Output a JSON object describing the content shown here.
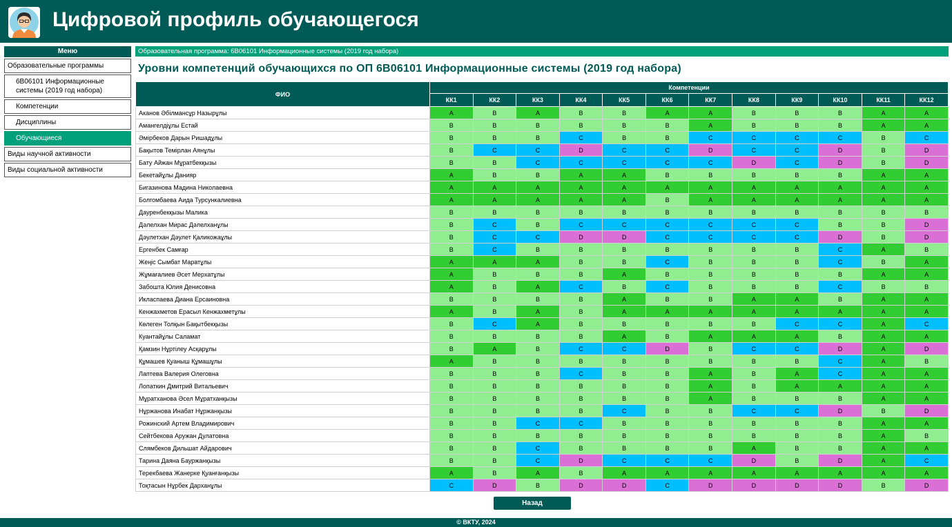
{
  "header": {
    "title": "Цифровой профиль обучающегося",
    "avatar_icon": "student-avatar-icon"
  },
  "sidebar": {
    "menu_label": "Меню",
    "items": [
      {
        "label": "Образовательные программы",
        "sub": false,
        "active": false
      },
      {
        "label": "6В06101 Информационные системы (2019 год набора)",
        "sub": true,
        "active": false
      },
      {
        "label": "Компетенции",
        "sub": true,
        "active": false
      },
      {
        "label": "Дисциплины",
        "sub": true,
        "active": false
      },
      {
        "label": "Обучающиеся",
        "sub": true,
        "active": true
      },
      {
        "label": "Виды научной активности",
        "sub": false,
        "active": false
      },
      {
        "label": "Виды социальной активности",
        "sub": false,
        "active": false
      }
    ]
  },
  "banner": "Образовательная программа: 6В06101 Информационные системы (2019 год набора)",
  "page_title": "Уровни компетенций обучающихся по ОП 6В06101 Информационные системы (2019 год набора)",
  "table": {
    "fio_header": "ФИО",
    "competencies_header": "Компетенции",
    "columns": [
      "КК1",
      "КК2",
      "КК3",
      "КК4",
      "КК5",
      "КК6",
      "КК7",
      "КК8",
      "КК9",
      "КК10",
      "КК11",
      "КК12"
    ],
    "level_colors": {
      "A": "#32cd32",
      "B": "#90ee90",
      "C": "#00bfff",
      "D": "#da70d6"
    },
    "rows": [
      {
        "name": "Аканов Әбілмансұр Назырұлы",
        "levels": [
          "A",
          "B",
          "A",
          "B",
          "B",
          "A",
          "A",
          "B",
          "B",
          "B",
          "A",
          "A"
        ]
      },
      {
        "name": "Амангелдіұлы Естай",
        "levels": [
          "B",
          "B",
          "B",
          "B",
          "B",
          "B",
          "A",
          "B",
          "B",
          "B",
          "A",
          "A"
        ]
      },
      {
        "name": "Әмірбеков Дарын Ришадұлы",
        "levels": [
          "B",
          "B",
          "B",
          "C",
          "B",
          "B",
          "C",
          "C",
          "C",
          "C",
          "B",
          "C"
        ]
      },
      {
        "name": "Бақытов Темірлан Аянұлы",
        "levels": [
          "B",
          "C",
          "C",
          "D",
          "C",
          "C",
          "D",
          "C",
          "C",
          "D",
          "B",
          "D"
        ]
      },
      {
        "name": "Бату Айжан Мұратбекқызы",
        "levels": [
          "B",
          "B",
          "C",
          "C",
          "C",
          "C",
          "C",
          "D",
          "C",
          "D",
          "B",
          "D"
        ]
      },
      {
        "name": "Бекетайұлы Данияр",
        "levels": [
          "A",
          "B",
          "B",
          "A",
          "A",
          "B",
          "B",
          "B",
          "B",
          "B",
          "A",
          "A"
        ]
      },
      {
        "name": "Бигазинова Мадина Николаевна",
        "levels": [
          "A",
          "A",
          "A",
          "A",
          "A",
          "A",
          "A",
          "A",
          "A",
          "A",
          "A",
          "A"
        ]
      },
      {
        "name": "Болгомбаева Аида Турсункалиевна",
        "levels": [
          "A",
          "A",
          "A",
          "A",
          "A",
          "B",
          "A",
          "A",
          "A",
          "A",
          "A",
          "A"
        ]
      },
      {
        "name": "Дауренбекқызы Малика",
        "levels": [
          "B",
          "B",
          "B",
          "B",
          "B",
          "B",
          "B",
          "B",
          "B",
          "B",
          "B",
          "B"
        ]
      },
      {
        "name": "Дәлелхан Мирас Дәлелханұлы",
        "levels": [
          "B",
          "C",
          "B",
          "C",
          "C",
          "C",
          "C",
          "C",
          "C",
          "B",
          "B",
          "D"
        ]
      },
      {
        "name": "Дәулетхан Дәулет Қаликожаұлы",
        "levels": [
          "B",
          "C",
          "C",
          "D",
          "D",
          "C",
          "C",
          "C",
          "C",
          "D",
          "B",
          "D"
        ]
      },
      {
        "name": "Ергенбек Самғар",
        "levels": [
          "B",
          "C",
          "B",
          "B",
          "B",
          "B",
          "B",
          "B",
          "B",
          "C",
          "A",
          "B"
        ]
      },
      {
        "name": "Жеңіс Сымбат Маратұлы",
        "levels": [
          "A",
          "A",
          "A",
          "B",
          "B",
          "C",
          "B",
          "B",
          "B",
          "C",
          "B",
          "A"
        ]
      },
      {
        "name": "Жұмағалиев Әсет Мерхатұлы",
        "levels": [
          "A",
          "B",
          "B",
          "B",
          "A",
          "B",
          "B",
          "B",
          "B",
          "B",
          "A",
          "A"
        ]
      },
      {
        "name": "Забошта Юлия Денисовна",
        "levels": [
          "A",
          "B",
          "A",
          "C",
          "B",
          "C",
          "B",
          "B",
          "B",
          "C",
          "B",
          "B"
        ]
      },
      {
        "name": "Икласпаева Диана Ерсаиновна",
        "levels": [
          "B",
          "B",
          "B",
          "B",
          "A",
          "B",
          "B",
          "A",
          "A",
          "B",
          "A",
          "A"
        ]
      },
      {
        "name": "Кенжахметов Ерасыл Кенжахметұлы",
        "levels": [
          "A",
          "B",
          "A",
          "B",
          "A",
          "A",
          "A",
          "A",
          "A",
          "A",
          "A",
          "A"
        ]
      },
      {
        "name": "Көлеген Толқын Бақытбекқызы",
        "levels": [
          "B",
          "C",
          "A",
          "B",
          "B",
          "B",
          "B",
          "B",
          "C",
          "C",
          "A",
          "C"
        ]
      },
      {
        "name": "Куантайұлы Саламат",
        "levels": [
          "B",
          "B",
          "B",
          "B",
          "A",
          "B",
          "A",
          "A",
          "A",
          "B",
          "A",
          "A"
        ]
      },
      {
        "name": "Қамзин Нұртілеу Асқарұлы",
        "levels": [
          "B",
          "A",
          "B",
          "C",
          "C",
          "D",
          "B",
          "C",
          "C",
          "D",
          "A",
          "D"
        ]
      },
      {
        "name": "Құмашев Қуаныш Құмашұлы",
        "levels": [
          "A",
          "B",
          "B",
          "B",
          "B",
          "B",
          "B",
          "B",
          "B",
          "C",
          "A",
          "B"
        ]
      },
      {
        "name": "Лаптева Валерия Олеговна",
        "levels": [
          "B",
          "B",
          "B",
          "C",
          "B",
          "B",
          "A",
          "B",
          "A",
          "C",
          "A",
          "A"
        ]
      },
      {
        "name": "Лопаткин Дмитрий Витальевич",
        "levels": [
          "B",
          "B",
          "B",
          "B",
          "B",
          "B",
          "A",
          "B",
          "A",
          "A",
          "A",
          "A"
        ]
      },
      {
        "name": "Мұратханова Әсел Мұратханқызы",
        "levels": [
          "B",
          "B",
          "B",
          "B",
          "B",
          "B",
          "A",
          "B",
          "B",
          "B",
          "A",
          "A"
        ]
      },
      {
        "name": "Нұржанова Инабат Нұржанқызы",
        "levels": [
          "B",
          "B",
          "B",
          "B",
          "C",
          "B",
          "B",
          "C",
          "C",
          "D",
          "B",
          "D"
        ]
      },
      {
        "name": "Рожинский Артем Владимирович",
        "levels": [
          "B",
          "B",
          "C",
          "C",
          "B",
          "B",
          "B",
          "B",
          "B",
          "B",
          "A",
          "A"
        ]
      },
      {
        "name": "Сейтбекова Аружан Дулатовна",
        "levels": [
          "B",
          "B",
          "B",
          "B",
          "B",
          "B",
          "B",
          "B",
          "B",
          "B",
          "A",
          "B"
        ]
      },
      {
        "name": "Слямбеков Дильшат Айдарович",
        "levels": [
          "B",
          "B",
          "C",
          "B",
          "B",
          "B",
          "B",
          "A",
          "B",
          "B",
          "A",
          "A"
        ]
      },
      {
        "name": "Тарина Даяна Бауржанқызы",
        "levels": [
          "B",
          "B",
          "C",
          "D",
          "C",
          "C",
          "C",
          "D",
          "B",
          "D",
          "A",
          "C"
        ]
      },
      {
        "name": "Терекбаева Жанерке Қуанғанқызы",
        "levels": [
          "A",
          "B",
          "A",
          "B",
          "A",
          "A",
          "A",
          "A",
          "A",
          "A",
          "A",
          "A"
        ]
      },
      {
        "name": "Тоқтасын Нұрбек Дарханұлы",
        "levels": [
          "C",
          "D",
          "B",
          "D",
          "D",
          "C",
          "D",
          "D",
          "D",
          "D",
          "B",
          "D"
        ]
      }
    ]
  },
  "back_button": "Назад",
  "footer": "© ВКТУ, 2024"
}
